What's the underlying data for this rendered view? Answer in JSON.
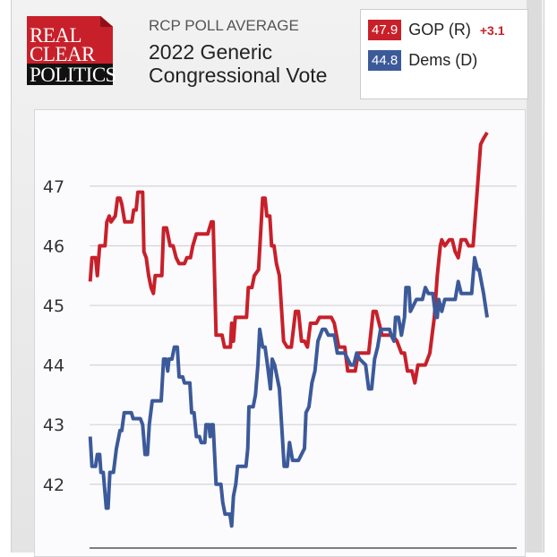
{
  "header": {
    "logo_lines": [
      "REAL",
      "CLEAR",
      "POLITICS"
    ],
    "subtitle": "RCP POLL AVERAGE",
    "title": "2022 Generic Congressional Vote"
  },
  "legend": {
    "items": [
      {
        "value": "47.9",
        "label": "GOP (R)",
        "change": "+3.1",
        "color": "#c8202a"
      },
      {
        "value": "44.8",
        "label": "Dems (D)",
        "change": "",
        "color": "#3c5a9a"
      }
    ]
  },
  "chart_data": {
    "type": "line",
    "title": "2022 Generic Congressional Vote",
    "xlabel": "",
    "ylabel": "",
    "xlim": [
      -2,
      1429
    ],
    "ylim": [
      40.93,
      48.14
    ],
    "yticks": [
      42,
      43,
      44,
      45,
      46,
      47
    ],
    "grid": true,
    "series": [
      {
        "name": "GOP (R)",
        "color": "#c8202a",
        "points": [
          [
            0,
            45.4
          ],
          [
            6,
            45.8
          ],
          [
            18,
            45.8
          ],
          [
            24,
            45.5
          ],
          [
            32,
            46.0
          ],
          [
            50,
            46.0
          ],
          [
            56,
            46.4
          ],
          [
            64,
            46.5
          ],
          [
            70,
            46.4
          ],
          [
            84,
            46.5
          ],
          [
            92,
            46.8
          ],
          [
            100,
            46.8
          ],
          [
            106,
            46.7
          ],
          [
            116,
            46.4
          ],
          [
            140,
            46.4
          ],
          [
            146,
            46.6
          ],
          [
            154,
            46.6
          ],
          [
            160,
            46.9
          ],
          [
            176,
            46.9
          ],
          [
            180,
            45.9
          ],
          [
            188,
            45.8
          ],
          [
            196,
            45.5
          ],
          [
            204,
            45.3
          ],
          [
            212,
            45.2
          ],
          [
            218,
            45.5
          ],
          [
            240,
            45.5
          ],
          [
            246,
            46.3
          ],
          [
            256,
            46.3
          ],
          [
            268,
            46.0
          ],
          [
            278,
            46.0
          ],
          [
            288,
            45.8
          ],
          [
            298,
            45.7
          ],
          [
            316,
            45.7
          ],
          [
            324,
            45.8
          ],
          [
            336,
            45.8
          ],
          [
            344,
            46.0
          ],
          [
            356,
            46.2
          ],
          [
            394,
            46.2
          ],
          [
            406,
            46.4
          ],
          [
            412,
            46.4
          ],
          [
            422,
            44.5
          ],
          [
            442,
            44.5
          ],
          [
            450,
            44.3
          ],
          [
            470,
            44.3
          ],
          [
            474,
            44.7
          ],
          [
            480,
            44.4
          ],
          [
            486,
            44.8
          ],
          [
            524,
            44.8
          ],
          [
            530,
            45.3
          ],
          [
            542,
            45.3
          ],
          [
            550,
            45.5
          ],
          [
            564,
            45.6
          ],
          [
            578,
            46.8
          ],
          [
            586,
            46.8
          ],
          [
            592,
            46.5
          ],
          [
            602,
            46.5
          ],
          [
            608,
            46.0
          ],
          [
            616,
            46.0
          ],
          [
            624,
            45.7
          ],
          [
            634,
            45.5
          ],
          [
            648,
            44.4
          ],
          [
            660,
            44.3
          ],
          [
            674,
            44.3
          ],
          [
            688,
            44.9
          ],
          [
            698,
            44.9
          ],
          [
            708,
            44.4
          ],
          [
            718,
            44.4
          ],
          [
            728,
            44.3
          ],
          [
            738,
            44.7
          ],
          [
            758,
            44.7
          ],
          [
            768,
            44.8
          ],
          [
            808,
            44.8
          ],
          [
            818,
            44.7
          ],
          [
            833,
            44.3
          ],
          [
            853,
            44.3
          ],
          [
            863,
            43.9
          ],
          [
            888,
            43.9
          ],
          [
            898,
            44.2
          ],
          [
            933,
            44.2
          ],
          [
            948,
            44.9
          ],
          [
            958,
            44.9
          ],
          [
            978,
            44.5
          ],
          [
            1013,
            44.5
          ],
          [
            1028,
            44.4
          ],
          [
            1043,
            44.2
          ],
          [
            1053,
            44.2
          ],
          [
            1063,
            43.9
          ],
          [
            1078,
            43.9
          ],
          [
            1088,
            43.7
          ],
          [
            1098,
            44.0
          ],
          [
            1123,
            44.0
          ],
          [
            1138,
            44.2
          ],
          [
            1153,
            44.8
          ],
          [
            1163,
            45.5
          ],
          [
            1173,
            46.0
          ],
          [
            1178,
            46.1
          ],
          [
            1188,
            46.0
          ],
          [
            1203,
            46.1
          ],
          [
            1213,
            46.1
          ],
          [
            1223,
            45.9
          ],
          [
            1233,
            45.8
          ],
          [
            1243,
            46.1
          ],
          [
            1258,
            46.1
          ],
          [
            1268,
            46.0
          ],
          [
            1283,
            46.0
          ],
          [
            1298,
            47.0
          ],
          [
            1308,
            47.7
          ],
          [
            1318,
            47.8
          ],
          [
            1330,
            47.9
          ]
        ]
      },
      {
        "name": "Dems (D)",
        "color": "#3c5a9a",
        "points": [
          [
            0,
            42.8
          ],
          [
            6,
            42.3
          ],
          [
            18,
            42.3
          ],
          [
            24,
            42.5
          ],
          [
            32,
            42.5
          ],
          [
            36,
            42.2
          ],
          [
            44,
            42.2
          ],
          [
            54,
            41.6
          ],
          [
            60,
            41.6
          ],
          [
            66,
            42.2
          ],
          [
            78,
            42.2
          ],
          [
            88,
            42.6
          ],
          [
            100,
            42.9
          ],
          [
            106,
            42.9
          ],
          [
            114,
            43.2
          ],
          [
            138,
            43.2
          ],
          [
            144,
            43.1
          ],
          [
            168,
            43.1
          ],
          [
            176,
            43.0
          ],
          [
            184,
            42.5
          ],
          [
            192,
            42.5
          ],
          [
            198,
            43.0
          ],
          [
            208,
            43.4
          ],
          [
            238,
            43.4
          ],
          [
            246,
            44.1
          ],
          [
            254,
            44.1
          ],
          [
            260,
            43.9
          ],
          [
            264,
            44.1
          ],
          [
            274,
            44.1
          ],
          [
            282,
            44.3
          ],
          [
            292,
            44.3
          ],
          [
            298,
            43.8
          ],
          [
            310,
            43.8
          ],
          [
            316,
            43.7
          ],
          [
            334,
            43.7
          ],
          [
            340,
            43.2
          ],
          [
            348,
            43.2
          ],
          [
            356,
            42.8
          ],
          [
            366,
            42.8
          ],
          [
            372,
            42.7
          ],
          [
            384,
            42.7
          ],
          [
            388,
            43.0
          ],
          [
            398,
            43.0
          ],
          [
            402,
            42.8
          ],
          [
            406,
            43.0
          ],
          [
            412,
            43.0
          ],
          [
            422,
            42.0
          ],
          [
            438,
            42.0
          ],
          [
            444,
            41.7
          ],
          [
            452,
            41.5
          ],
          [
            468,
            41.5
          ],
          [
            474,
            41.3
          ],
          [
            480,
            41.8
          ],
          [
            488,
            42.0
          ],
          [
            494,
            42.3
          ],
          [
            522,
            42.3
          ],
          [
            528,
            42.6
          ],
          [
            532,
            43.3
          ],
          [
            546,
            43.3
          ],
          [
            554,
            43.5
          ],
          [
            562,
            44.0
          ],
          [
            568,
            44.6
          ],
          [
            578,
            44.3
          ],
          [
            586,
            44.3
          ],
          [
            594,
            44.0
          ],
          [
            604,
            43.6
          ],
          [
            610,
            44.1
          ],
          [
            618,
            44.0
          ],
          [
            634,
            43.6
          ],
          [
            644,
            42.8
          ],
          [
            650,
            42.3
          ],
          [
            660,
            42.3
          ],
          [
            668,
            42.7
          ],
          [
            678,
            42.4
          ],
          [
            698,
            42.4
          ],
          [
            718,
            42.6
          ],
          [
            723,
            43.2
          ],
          [
            733,
            43.3
          ],
          [
            743,
            43.7
          ],
          [
            753,
            43.9
          ],
          [
            763,
            44.4
          ],
          [
            778,
            44.6
          ],
          [
            788,
            44.6
          ],
          [
            798,
            44.5
          ],
          [
            818,
            44.5
          ],
          [
            828,
            44.2
          ],
          [
            853,
            44.2
          ],
          [
            863,
            44.1
          ],
          [
            873,
            44.0
          ],
          [
            883,
            44.0
          ],
          [
            893,
            44.2
          ],
          [
            903,
            44.1
          ],
          [
            923,
            44.0
          ],
          [
            933,
            43.6
          ],
          [
            943,
            43.6
          ],
          [
            953,
            44.1
          ],
          [
            963,
            44.3
          ],
          [
            973,
            44.6
          ],
          [
            1003,
            44.6
          ],
          [
            1008,
            44.5
          ],
          [
            1018,
            44.4
          ],
          [
            1023,
            44.8
          ],
          [
            1033,
            44.8
          ],
          [
            1043,
            44.5
          ],
          [
            1053,
            44.8
          ],
          [
            1058,
            45.3
          ],
          [
            1068,
            45.3
          ],
          [
            1073,
            44.9
          ],
          [
            1083,
            45.0
          ],
          [
            1093,
            45.1
          ],
          [
            1113,
            45.1
          ],
          [
            1123,
            45.3
          ],
          [
            1133,
            45.2
          ],
          [
            1148,
            45.2
          ],
          [
            1158,
            44.8
          ],
          [
            1163,
            44.8
          ],
          [
            1168,
            45.1
          ],
          [
            1178,
            44.9
          ],
          [
            1188,
            45.1
          ],
          [
            1223,
            45.1
          ],
          [
            1233,
            45.4
          ],
          [
            1243,
            45.2
          ],
          [
            1278,
            45.2
          ],
          [
            1288,
            45.8
          ],
          [
            1298,
            45.6
          ],
          [
            1303,
            45.6
          ],
          [
            1318,
            45.2
          ],
          [
            1330,
            44.8
          ]
        ]
      }
    ]
  }
}
